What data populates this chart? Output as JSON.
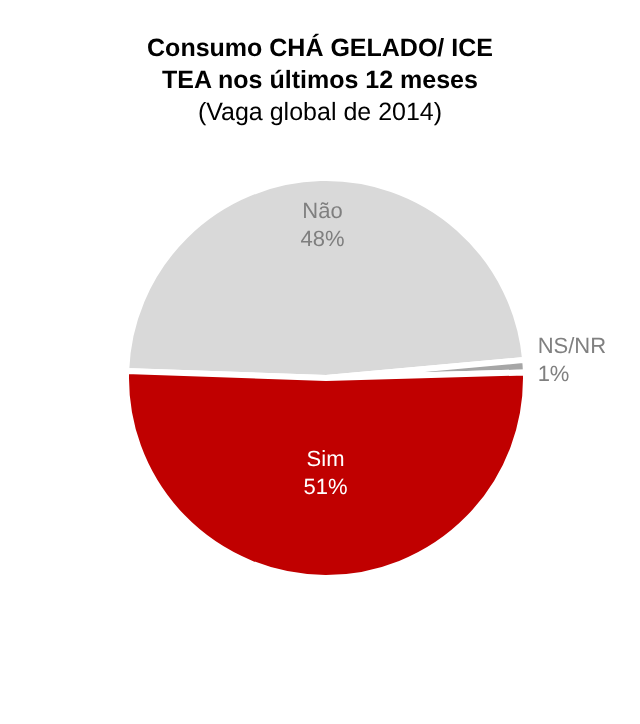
{
  "chart_data": {
    "type": "pie",
    "title": "Consumo CHÁ GELADO/ ICE TEA nos últimos 12 meses",
    "subtitle": "(Vaga global de 2014)",
    "categories": [
      "Não",
      "NS/NR",
      "Sim"
    ],
    "values": [
      48,
      1,
      51
    ],
    "value_labels": [
      "48%",
      "1%",
      "51%"
    ],
    "colors": [
      "#d9d9d9",
      "#a6a6a6",
      "#c00000"
    ],
    "legend": false
  }
}
